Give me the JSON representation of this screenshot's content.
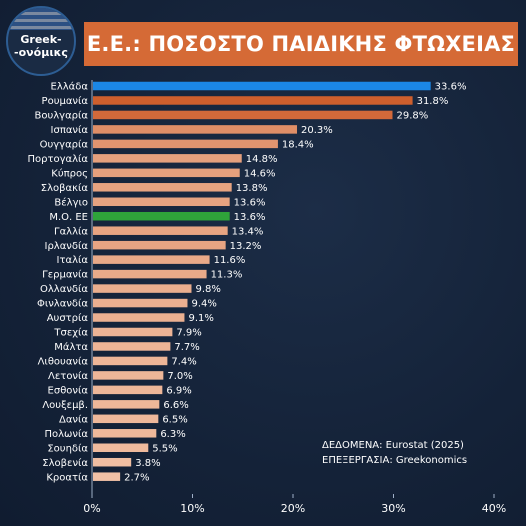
{
  "header": {
    "logo_line1": "Greek-",
    "logo_line2": "-ονόμικς",
    "title": "Ε.Ε.: ΠΟΣΟΣΤΟ ΠΑΙΔΙΚΗΣ ΦΤΩΧΕΙΑΣ"
  },
  "colors": {
    "background": "#16243a",
    "title_bar": "#d56a36",
    "highlight_greece": "#1b87e6",
    "highlight_eu_average": "#2fa33a",
    "bar_gradient_dark": "#c84f1a",
    "bar_gradient_light": "#f2c3a8"
  },
  "source": {
    "line1": "ΔΕΔΟΜΕΝΑ: Eurostat (2025)",
    "line2": "ΕΠΕΞΕΡΓΑΣΙΑ: Greekonomics"
  },
  "chart_data": {
    "type": "bar",
    "orientation": "horizontal",
    "title": "Ε.Ε.: ΠΟΣΟΣΤΟ ΠΑΙΔΙΚΗΣ ΦΤΩΧΕΙΑΣ",
    "categories": [
      "Ελλάδα",
      "Ρουμανία",
      "Βουλγαρία",
      "Ισπανία",
      "Ουγγαρία",
      "Πορτογαλία",
      "Κύπρος",
      "Σλοβακία",
      "Βέλγιο",
      "Μ.Ο. ΕΕ",
      "Γαλλία",
      "Ιρλανδία",
      "Ιταλία",
      "Γερμανία",
      "Ολλανδία",
      "Φινλανδία",
      "Αυστρία",
      "Τσεχία",
      "Μάλτα",
      "Λιθουανία",
      "Λετονία",
      "Εσθονία",
      "Λουξεμβ.",
      "Δανία",
      "Πολωνία",
      "Σουηδία",
      "Σλοβενία",
      "Κροατία"
    ],
    "values": [
      33.6,
      31.8,
      29.8,
      20.3,
      18.4,
      14.8,
      14.6,
      13.8,
      13.6,
      13.6,
      13.4,
      13.2,
      11.6,
      11.3,
      9.8,
      9.4,
      9.1,
      7.9,
      7.7,
      7.4,
      7.0,
      6.9,
      6.6,
      6.5,
      6.3,
      5.5,
      3.8,
      2.7
    ],
    "value_labels": [
      "33.6%",
      "31.8%",
      "29.8%",
      "20.3%",
      "18.4%",
      "14.8%",
      "14.6%",
      "13.8%",
      "13.6%",
      "13.6%",
      "13.4%",
      "13.2%",
      "11.6%",
      "11.3%",
      "9.8%",
      "9.4%",
      "9.1%",
      "7.9%",
      "7.7%",
      "7.4%",
      "7.0%",
      "6.9%",
      "6.6%",
      "6.5%",
      "6.3%",
      "5.5%",
      "3.8%",
      "2.7%"
    ],
    "highlights": {
      "Ελλάδα": "#1b87e6",
      "Μ.Ο. ΕΕ": "#2fa33a"
    },
    "xlim": [
      0,
      40
    ],
    "x_ticks": [
      0,
      10,
      20,
      30,
      40
    ],
    "x_tick_labels": [
      "0%",
      "10%",
      "20%",
      "30%",
      "40%"
    ],
    "grid": false,
    "legend": "none"
  }
}
